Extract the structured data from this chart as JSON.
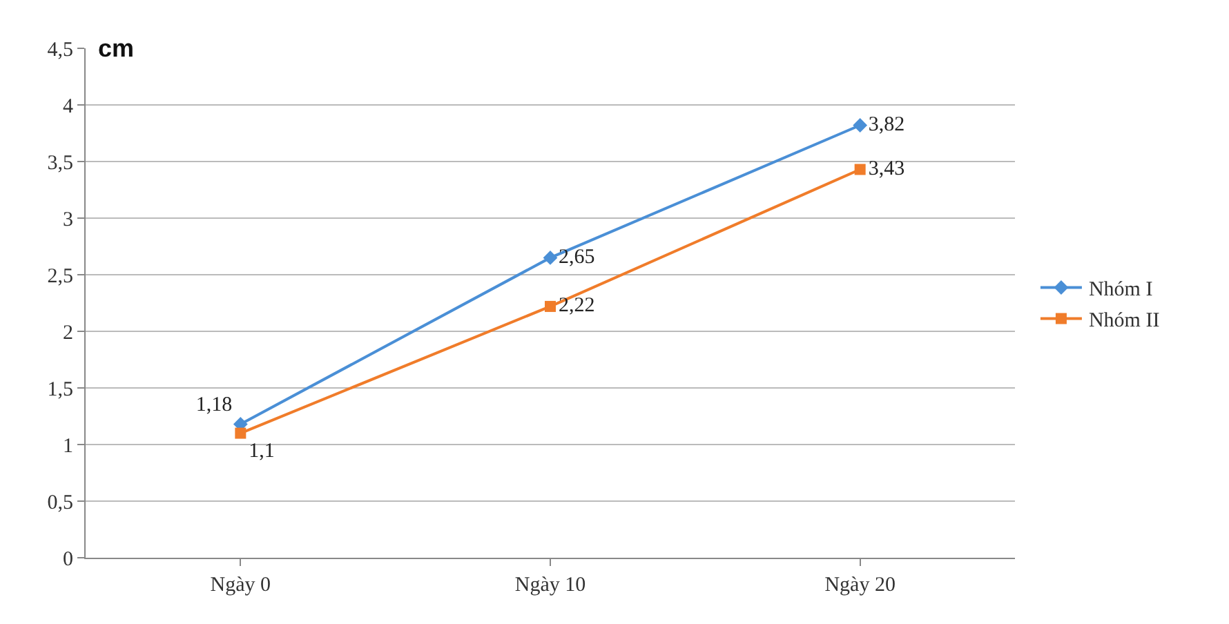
{
  "chart_data": {
    "type": "line",
    "ylabel": "cm",
    "categories": [
      "Ngày 0",
      "Ngày 10",
      "Ngày 20"
    ],
    "series": [
      {
        "name": "Nhóm I",
        "color": "#4a8fd6",
        "marker": "diamond",
        "values": [
          1.18,
          2.65,
          3.82
        ],
        "value_labels": [
          "1,18",
          "2,65",
          "3,82"
        ]
      },
      {
        "name": "Nhóm II",
        "color": "#f07c2a",
        "marker": "square",
        "values": [
          1.1,
          2.22,
          3.43
        ],
        "value_labels": [
          "1,1",
          "2,22",
          "3,43"
        ]
      }
    ],
    "ylim": [
      0,
      4.5
    ],
    "yticks": [
      0,
      {
        "value": 0.5,
        "label": "0,5"
      },
      1,
      {
        "value": 1.5,
        "label": "1,5"
      },
      2,
      {
        "value": 2.5,
        "label": "2,5"
      },
      3,
      {
        "value": 3.5,
        "label": "3,5"
      },
      4,
      {
        "value": 4.5,
        "label": "4,5"
      }
    ],
    "grid": "y",
    "legend": "right",
    "line_style": "solid"
  }
}
